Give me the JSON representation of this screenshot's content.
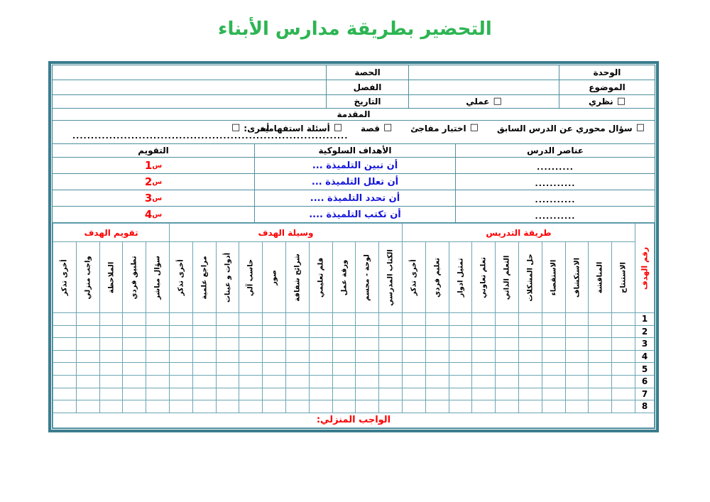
{
  "title": "التحضير بطريقة مدارس الأبناء",
  "checkbox_glyph": "□",
  "header_fields": {
    "unit": "الوحدة",
    "topic": "الموضوع",
    "period": "الحصة",
    "class": "الفصل",
    "date": "التاريخ",
    "theory": "نظري",
    "practical": "عملي"
  },
  "intro": {
    "title": "المقدمة",
    "options": [
      "سؤال محوري عن الدرس السابق",
      "اختبار مفاجئ",
      "قصة",
      "أسئلة استفهامية"
    ],
    "other": "أخرى:",
    "dots": "............................................................................................................"
  },
  "objectives": {
    "headers": {
      "elements": "عناصر الدرس",
      "behavioral": "الأهداف السلوكية",
      "evaluation": "التقويم"
    },
    "eval_prefix": "س",
    "rows": [
      {
        "element": "..........",
        "objective": "أن تبين التلميذة ...",
        "eval_num": "1"
      },
      {
        "element": "...........",
        "objective": "أن تعلل التلميذة ...",
        "eval_num": "2"
      },
      {
        "element": "...........",
        "objective": "أن تحدد التلميذة ....",
        "eval_num": "3"
      },
      {
        "element": "...........",
        "objective": "أن تكتب التلميذة ....",
        "eval_num": "4"
      }
    ]
  },
  "grid": {
    "goal_number_label": "رقم الهدف",
    "groups": [
      {
        "label": "طريقة التدريس",
        "columns": [
          "الاستنتاج",
          "المناقشة",
          "الاستكشاف",
          "الاستقصاء",
          "حل المشكلات",
          "التعلم الذاتي",
          "تعلم تعاوني",
          "تمثيل ادوار",
          "تعليم فردي",
          "أخرى تذكر"
        ]
      },
      {
        "label": "وسيلة الهدف",
        "columns": [
          "الكتاب المدرسي",
          "لوحة - مجسم",
          "ورقة عمل",
          "فلم تعليمي",
          "شرائح شفافة",
          "صور",
          "حاسب آلي",
          "أدوات و عينات",
          "مراجع علمية",
          "أخرى تذكر"
        ]
      },
      {
        "label": "تقويم الهدف",
        "columns": [
          "سؤال مباشر",
          "تطبيق فردي",
          "الملاحظة",
          "واجب منزلي",
          "أخرى تذكر"
        ]
      }
    ],
    "row_numbers": [
      "1",
      "2",
      "3",
      "4",
      "5",
      "6",
      "7",
      "8"
    ]
  },
  "homework_label": "الواجب المنزلي:",
  "colors": {
    "title_green": "#2DB553",
    "accent_red": "#FF0000",
    "goal_blue": "#1414DC",
    "border_dark": "#3A7C8E",
    "border_light": "#4E8FA0"
  }
}
